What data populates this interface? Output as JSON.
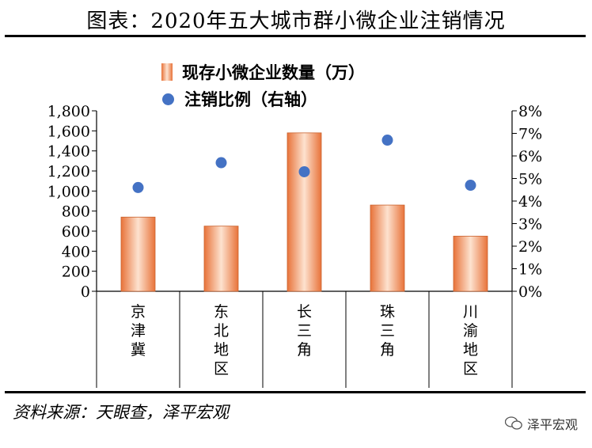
{
  "title": "图表：2020年五大城市群小微企业注销情况",
  "source": "资料来源：天眼查，泽平宏观",
  "watermark": "泽平宏观",
  "watermark_icon": "wechat-icon",
  "colors": {
    "bar": "#e8733a",
    "dot": "#4472c4"
  },
  "chart_data": {
    "type": "bar",
    "categories": [
      "京津冀",
      "东北地区",
      "长三角",
      "珠三角",
      "川渝地区"
    ],
    "series": [
      {
        "name": "现存小微企业数量（万）",
        "type": "bar",
        "axis": "left",
        "values": [
          740,
          650,
          1580,
          860,
          550
        ]
      },
      {
        "name": "注销比例（右轴）",
        "type": "scatter",
        "axis": "right",
        "values": [
          4.6,
          5.7,
          5.3,
          6.7,
          4.7
        ]
      }
    ],
    "ylim": [
      0,
      1800
    ],
    "y2lim": [
      0,
      8
    ],
    "yticks": [
      "0",
      "200",
      "400",
      "600",
      "800",
      "1,000",
      "1,200",
      "1,400",
      "1,600",
      "1,800"
    ],
    "y2ticks": [
      "0%",
      "1%",
      "2%",
      "3%",
      "4%",
      "5%",
      "6%",
      "7%",
      "8%"
    ],
    "grid": false,
    "legend_position": "top-center"
  }
}
